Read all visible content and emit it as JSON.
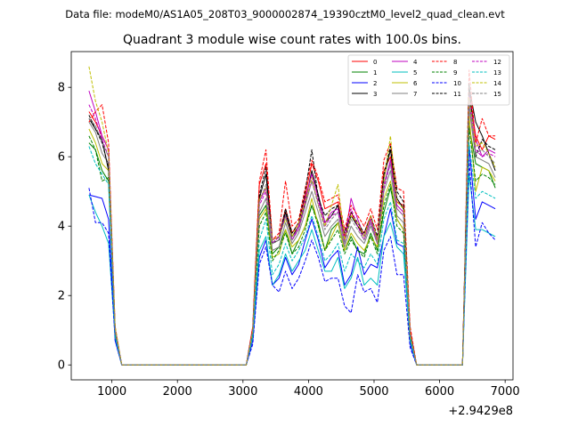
{
  "suptitle": "Data file: modeM0/AS1A05_208T03_9000002874_19390cztM0_level2_quad_clean.evt",
  "chart_data": {
    "type": "line",
    "title": "Quadrant 3 module wise count rates with 100.0s bins.",
    "xlabel": "",
    "ylabel": "",
    "offset_text": "+2.9429e8",
    "xlim": [
      380,
      7120
    ],
    "ylim": [
      -0.43,
      9.03
    ],
    "xticks": [
      1000,
      2000,
      3000,
      4000,
      5000,
      6000,
      7000
    ],
    "xtick_labels": [
      "1000",
      "2000",
      "3000",
      "4000",
      "5000",
      "6000",
      "7000"
    ],
    "yticks": [
      0,
      2,
      4,
      6,
      8
    ],
    "ytick_labels": [
      "0",
      "2",
      "4",
      "6",
      "8"
    ],
    "legend_location": "top-right",
    "x": [
      650,
      750,
      850,
      950,
      1050,
      1150,
      1250,
      1350,
      1450,
      1550,
      1650,
      1750,
      1850,
      1950,
      2050,
      2150,
      2250,
      2350,
      2450,
      2550,
      2650,
      2750,
      2850,
      2950,
      3050,
      3150,
      3250,
      3350,
      3450,
      3550,
      3650,
      3750,
      3850,
      3950,
      4050,
      4150,
      4250,
      4350,
      4450,
      4550,
      4650,
      4750,
      4850,
      4950,
      5050,
      5150,
      5250,
      5350,
      5450,
      5550,
      5650,
      5750,
      5850,
      5950,
      6050,
      6150,
      6250,
      6350,
      6450,
      6550,
      6650,
      6750,
      6850
    ],
    "series": [
      {
        "name": "0",
        "color": "#ff0000",
        "dash": "solid",
        "values": [
          7.3,
          7.0,
          6.6,
          6.2,
          1.0,
          0,
          0,
          0,
          0,
          0,
          0,
          0,
          0,
          0,
          0,
          0,
          0,
          0,
          0,
          0,
          0,
          0,
          0,
          0,
          0,
          1.1,
          5.2,
          5.8,
          3.6,
          3.7,
          4.5,
          3.8,
          4.1,
          4.9,
          5.8,
          5.3,
          4.5,
          4.6,
          4.7,
          3.7,
          4.4,
          4.0,
          3.8,
          4.3,
          3.6,
          5.6,
          6.0,
          4.7,
          4.6,
          1.0,
          0,
          0,
          0,
          0,
          0,
          0,
          0,
          0,
          7.9,
          6.6,
          6.2,
          6.6,
          6.5
        ]
      },
      {
        "name": "1",
        "color": "#008000",
        "dash": "solid",
        "values": [
          6.4,
          6.2,
          5.6,
          5.3,
          0.9,
          0,
          0,
          0,
          0,
          0,
          0,
          0,
          0,
          0,
          0,
          0,
          0,
          0,
          0,
          0,
          0,
          0,
          0,
          0,
          0,
          0.9,
          4.3,
          4.6,
          3.2,
          3.4,
          3.9,
          3.2,
          3.6,
          4.0,
          4.6,
          4.1,
          3.3,
          3.9,
          4.1,
          3.3,
          3.7,
          3.3,
          3.2,
          3.8,
          3.3,
          4.4,
          5.1,
          4.2,
          3.9,
          0.8,
          0,
          0,
          0,
          0,
          0,
          0,
          0,
          0,
          6.9,
          5.8,
          5.7,
          5.6,
          5.1
        ]
      },
      {
        "name": "2",
        "color": "#0000ff",
        "dash": "solid",
        "values": [
          4.9,
          4.85,
          4.8,
          4.2,
          0.7,
          0,
          0,
          0,
          0,
          0,
          0,
          0,
          0,
          0,
          0,
          0,
          0,
          0,
          0,
          0,
          0,
          0,
          0,
          0,
          0,
          0.7,
          3.1,
          3.6,
          2.3,
          2.5,
          3.1,
          2.6,
          2.9,
          3.6,
          4.2,
          3.6,
          2.8,
          3.1,
          3.3,
          2.3,
          2.6,
          3.4,
          2.6,
          2.9,
          2.8,
          3.7,
          4.5,
          3.5,
          3.4,
          0.6,
          0,
          0,
          0,
          0,
          0,
          0,
          0,
          0,
          6.3,
          4.2,
          4.7,
          4.6,
          4.5
        ]
      },
      {
        "name": "3",
        "color": "#000000",
        "dash": "solid",
        "values": [
          7.1,
          6.8,
          6.5,
          5.6,
          1.0,
          0,
          0,
          0,
          0,
          0,
          0,
          0,
          0,
          0,
          0,
          0,
          0,
          0,
          0,
          0,
          0,
          0,
          0,
          0,
          0,
          1.0,
          4.8,
          5.5,
          3.5,
          3.6,
          4.4,
          3.7,
          4.0,
          4.7,
          5.6,
          4.9,
          4.1,
          4.3,
          4.6,
          3.6,
          4.3,
          4.0,
          3.7,
          4.2,
          3.6,
          5.4,
          6.2,
          4.8,
          4.5,
          0.9,
          0,
          0,
          0,
          0,
          0,
          0,
          0,
          0,
          8.0,
          7.0,
          6.6,
          6.1,
          5.6
        ]
      },
      {
        "name": "4",
        "color": "#bf00bf",
        "dash": "solid",
        "values": [
          7.9,
          7.3,
          6.6,
          6.2,
          1.0,
          0,
          0,
          0,
          0,
          0,
          0,
          0,
          0,
          0,
          0,
          0,
          0,
          0,
          0,
          0,
          0,
          0,
          0,
          0,
          0,
          1.0,
          4.7,
          5.1,
          3.6,
          3.7,
          4.3,
          3.6,
          4.0,
          4.8,
          5.5,
          4.8,
          4.1,
          4.4,
          4.5,
          3.6,
          4.8,
          4.2,
          3.7,
          4.2,
          3.6,
          5.2,
          5.9,
          4.6,
          4.4,
          0.9,
          0,
          0,
          0,
          0,
          0,
          0,
          0,
          0,
          7.8,
          6.5,
          6.0,
          6.2,
          6.1
        ]
      },
      {
        "name": "5",
        "color": "#00bfbf",
        "dash": "solid",
        "values": [
          4.9,
          4.4,
          4.0,
          3.5,
          0.8,
          0,
          0,
          0,
          0,
          0,
          0,
          0,
          0,
          0,
          0,
          0,
          0,
          0,
          0,
          0,
          0,
          0,
          0,
          0,
          0,
          0.8,
          3.3,
          3.7,
          2.3,
          2.6,
          3.2,
          2.7,
          3.0,
          3.3,
          3.9,
          3.3,
          2.7,
          2.7,
          3.1,
          2.2,
          2.5,
          3.1,
          2.3,
          2.5,
          2.3,
          3.7,
          4.1,
          3.4,
          3.2,
          0.7,
          0,
          0,
          0,
          0,
          0,
          0,
          0,
          0,
          5.5,
          3.9,
          3.9,
          3.8,
          3.7
        ]
      },
      {
        "name": "6",
        "color": "#bfbf00",
        "dash": "solid",
        "values": [
          6.8,
          6.4,
          5.8,
          5.6,
          0.9,
          0,
          0,
          0,
          0,
          0,
          0,
          0,
          0,
          0,
          0,
          0,
          0,
          0,
          0,
          0,
          0,
          0,
          0,
          0,
          0,
          0.9,
          4.2,
          4.5,
          3.1,
          3.2,
          3.9,
          3.4,
          3.6,
          4.0,
          4.8,
          4.0,
          3.3,
          3.7,
          4.1,
          3.3,
          3.8,
          3.5,
          3.3,
          3.7,
          3.4,
          4.8,
          5.3,
          4.2,
          3.9,
          0.8,
          0,
          0,
          0,
          0,
          0,
          0,
          0,
          0,
          7.2,
          5.0,
          5.7,
          5.6,
          5.3
        ]
      },
      {
        "name": "7",
        "color": "#808080",
        "dash": "solid",
        "values": [
          7.0,
          6.7,
          6.1,
          5.8,
          0.9,
          0,
          0,
          0,
          0,
          0,
          0,
          0,
          0,
          0,
          0,
          0,
          0,
          0,
          0,
          0,
          0,
          0,
          0,
          0,
          0,
          0.9,
          4.4,
          4.8,
          3.3,
          3.4,
          4.1,
          3.5,
          3.8,
          4.4,
          5.0,
          4.4,
          3.7,
          4.0,
          4.2,
          3.4,
          4.0,
          3.7,
          3.5,
          4.0,
          3.5,
          5.0,
          5.6,
          4.3,
          4.1,
          0.8,
          0,
          0,
          0,
          0,
          0,
          0,
          0,
          0,
          7.4,
          6.0,
          5.9,
          5.8,
          5.4
        ]
      },
      {
        "name": "8",
        "color": "#ff0000",
        "dash": "dashed",
        "values": [
          7.0,
          7.3,
          7.5,
          6.4,
          1.1,
          0,
          0,
          0,
          0,
          0,
          0,
          0,
          0,
          0,
          0,
          0,
          0,
          0,
          0,
          0,
          0,
          0,
          0,
          0,
          0,
          1.1,
          5.3,
          6.2,
          3.6,
          3.8,
          5.3,
          4.0,
          4.2,
          5.1,
          5.9,
          5.4,
          4.7,
          4.8,
          4.9,
          3.9,
          4.6,
          4.3,
          4.0,
          4.5,
          3.9,
          5.9,
          6.4,
          5.1,
          5.0,
          1.1,
          0,
          0,
          0,
          0,
          0,
          0,
          0,
          0,
          8.5,
          6.4,
          7.1,
          6.6,
          6.6
        ]
      },
      {
        "name": "9",
        "color": "#008000",
        "dash": "dashed",
        "values": [
          6.6,
          6.2,
          5.3,
          5.4,
          0.9,
          0,
          0,
          0,
          0,
          0,
          0,
          0,
          0,
          0,
          0,
          0,
          0,
          0,
          0,
          0,
          0,
          0,
          0,
          0,
          0,
          0.9,
          4.0,
          4.4,
          3.0,
          3.3,
          3.8,
          3.2,
          3.4,
          3.9,
          4.6,
          4.0,
          3.3,
          3.6,
          3.9,
          3.2,
          3.6,
          3.3,
          3.1,
          3.7,
          3.2,
          4.6,
          5.2,
          4.0,
          3.8,
          0.8,
          0,
          0,
          0,
          0,
          0,
          0,
          0,
          0,
          6.8,
          5.3,
          5.5,
          5.4,
          5.2
        ]
      },
      {
        "name": "10",
        "color": "#0000ff",
        "dash": "dashed",
        "values": [
          5.1,
          4.1,
          4.1,
          3.8,
          0.7,
          0,
          0,
          0,
          0,
          0,
          0,
          0,
          0,
          0,
          0,
          0,
          0,
          0,
          0,
          0,
          0,
          0,
          0,
          0,
          0,
          0.6,
          2.9,
          3.4,
          2.3,
          2.1,
          2.7,
          2.2,
          2.5,
          3.0,
          3.6,
          3.1,
          2.4,
          2.5,
          2.5,
          1.7,
          1.5,
          2.6,
          2.1,
          2.2,
          1.8,
          3.3,
          3.7,
          2.6,
          2.6,
          0.5,
          0,
          0,
          0,
          0,
          0,
          0,
          0,
          0,
          5.9,
          3.4,
          4.1,
          3.8,
          3.6
        ]
      },
      {
        "name": "11",
        "color": "#000000",
        "dash": "dashed",
        "values": [
          7.2,
          6.8,
          6.4,
          5.7,
          1.0,
          0,
          0,
          0,
          0,
          0,
          0,
          0,
          0,
          0,
          0,
          0,
          0,
          0,
          0,
          0,
          0,
          0,
          0,
          0,
          0,
          1.0,
          4.9,
          5.7,
          3.5,
          3.7,
          4.5,
          3.8,
          4.1,
          5.0,
          6.2,
          4.8,
          4.3,
          4.5,
          4.6,
          3.8,
          4.4,
          4.1,
          3.8,
          4.3,
          3.7,
          5.5,
          6.3,
          5.0,
          4.7,
          0.9,
          0,
          0,
          0,
          0,
          0,
          0,
          0,
          0,
          8.1,
          6.0,
          6.5,
          6.3,
          6.2
        ]
      },
      {
        "name": "12",
        "color": "#bf00bf",
        "dash": "dashed",
        "values": [
          7.5,
          7.1,
          6.5,
          6.0,
          1.0,
          0,
          0,
          0,
          0,
          0,
          0,
          0,
          0,
          0,
          0,
          0,
          0,
          0,
          0,
          0,
          0,
          0,
          0,
          0,
          0,
          1.0,
          4.6,
          5.0,
          3.5,
          3.7,
          4.3,
          3.6,
          3.9,
          4.6,
          5.3,
          4.7,
          4.0,
          4.3,
          4.4,
          3.5,
          4.5,
          4.0,
          3.6,
          4.1,
          3.5,
          5.1,
          5.8,
          4.5,
          4.3,
          0.9,
          0,
          0,
          0,
          0,
          0,
          0,
          0,
          0,
          7.6,
          6.2,
          6.0,
          6.1,
          6.0
        ]
      },
      {
        "name": "13",
        "color": "#00bfbf",
        "dash": "dashed",
        "values": [
          6.3,
          5.8,
          5.5,
          5.2,
          0.8,
          0,
          0,
          0,
          0,
          0,
          0,
          0,
          0,
          0,
          0,
          0,
          0,
          0,
          0,
          0,
          0,
          0,
          0,
          0,
          0,
          0.8,
          3.6,
          4.2,
          2.6,
          2.9,
          3.5,
          3.0,
          3.3,
          3.7,
          4.3,
          3.7,
          3.0,
          3.2,
          3.5,
          2.7,
          3.2,
          3.0,
          2.8,
          3.2,
          2.9,
          4.2,
          4.7,
          3.6,
          3.5,
          0.7,
          0,
          0,
          0,
          0,
          0,
          0,
          0,
          0,
          6.4,
          4.8,
          5.0,
          4.9,
          4.8
        ]
      },
      {
        "name": "14",
        "color": "#bfbf00",
        "dash": "dashed",
        "values": [
          8.6,
          7.6,
          7.0,
          6.1,
          1.1,
          0,
          0,
          0,
          0,
          0,
          0,
          0,
          0,
          0,
          0,
          0,
          0,
          0,
          0,
          0,
          0,
          0,
          0,
          0,
          0,
          1.0,
          4.8,
          5.1,
          3.6,
          3.7,
          4.2,
          3.7,
          4.1,
          4.7,
          5.4,
          4.6,
          4.0,
          4.6,
          5.2,
          3.6,
          4.3,
          4.1,
          3.7,
          4.3,
          3.6,
          5.3,
          6.6,
          4.7,
          4.5,
          0.9,
          0,
          0,
          0,
          0,
          0,
          0,
          0,
          0,
          7.7,
          6.3,
          6.4,
          6.1,
          5.7
        ]
      },
      {
        "name": "15",
        "color": "#808080",
        "dash": "dashed",
        "values": [
          7.1,
          6.9,
          6.4,
          6.0,
          1.0,
          0,
          0,
          0,
          0,
          0,
          0,
          0,
          0,
          0,
          0,
          0,
          0,
          0,
          0,
          0,
          0,
          0,
          0,
          0,
          0,
          1.0,
          4.7,
          5.2,
          3.5,
          3.6,
          4.3,
          3.6,
          3.9,
          4.6,
          5.3,
          4.6,
          3.9,
          4.2,
          4.4,
          3.5,
          4.2,
          3.9,
          3.6,
          4.1,
          3.5,
          5.2,
          5.8,
          4.5,
          4.3,
          0.9,
          0,
          0,
          0,
          0,
          0,
          0,
          0,
          0,
          7.6,
          6.1,
          6.2,
          6.0,
          5.8
        ]
      }
    ]
  }
}
